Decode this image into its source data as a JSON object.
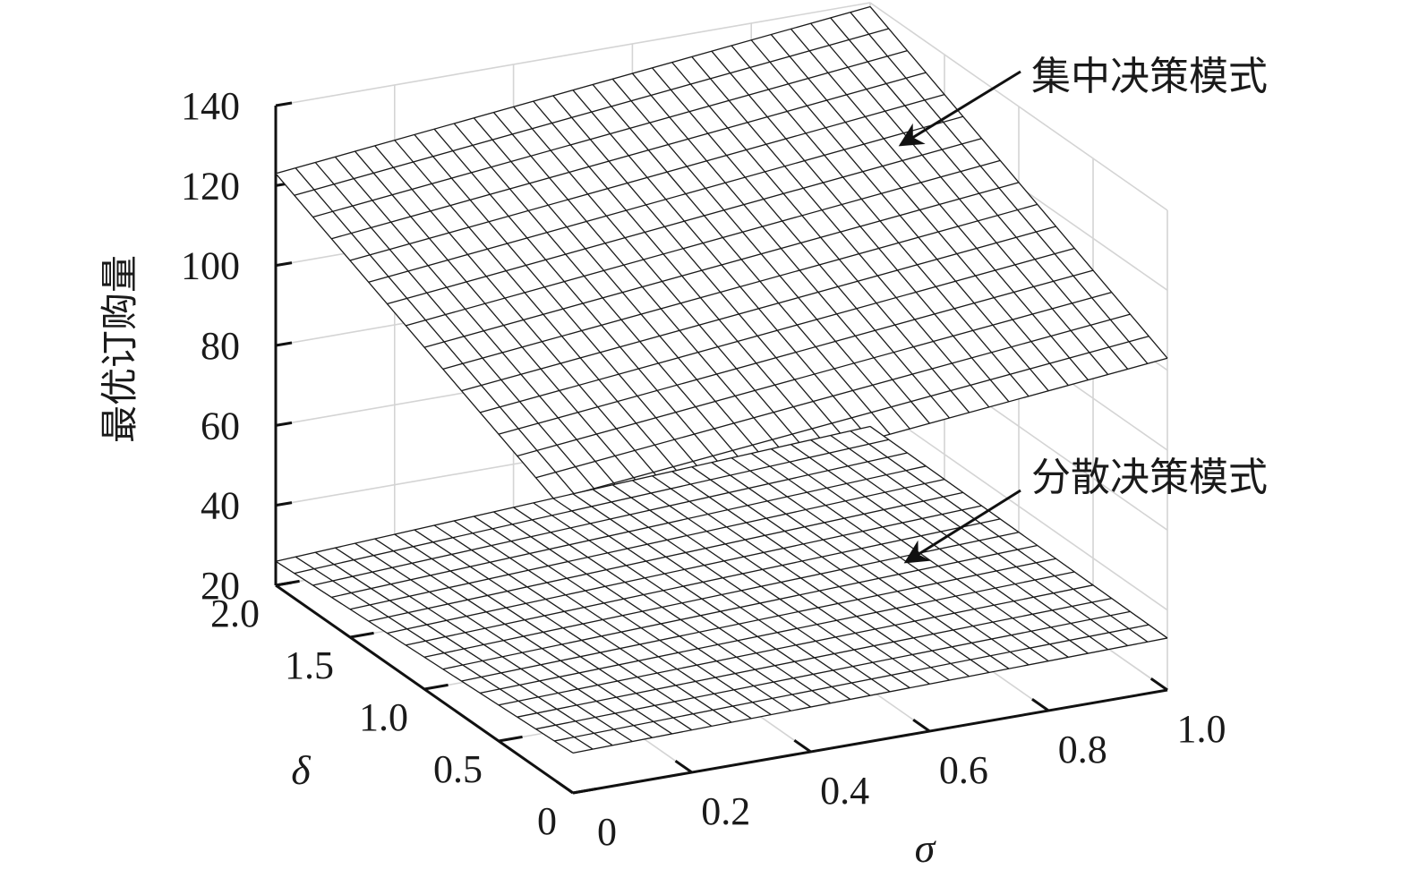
{
  "chart_data": {
    "type": "surface3d",
    "title": "",
    "xlabel": "σ",
    "ylabel": "δ",
    "zlabel": "最优订购量",
    "xlim": [
      0,
      1
    ],
    "ylim": [
      0,
      2
    ],
    "zlim": [
      20,
      140
    ],
    "x_ticks": [
      0,
      0.2,
      0.4,
      0.6,
      0.8,
      1.0
    ],
    "x_tick_labels": [
      "0",
      "0.2",
      "0.4",
      "0.6",
      "0.8",
      "1.0"
    ],
    "y_ticks": [
      0,
      0.5,
      1.0,
      1.5,
      2.0
    ],
    "y_tick_labels": [
      "0",
      "0.5",
      "1.0",
      "1.5",
      "2.0"
    ],
    "z_ticks": [
      20,
      40,
      60,
      80,
      100,
      120,
      140
    ],
    "z_tick_labels": [
      "20",
      "40",
      "60",
      "80",
      "100",
      "120",
      "140"
    ],
    "grid": true,
    "series": [
      {
        "name": "集中决策模式",
        "type": "surface",
        "z_corners": {
          "sigma0_delta0": 88,
          "sigma0_delta2": 123,
          "sigma1_delta0": 103,
          "sigma1_delta2": 139
        }
      },
      {
        "name": "分散决策模式",
        "type": "surface",
        "z_corners": {
          "sigma0_delta0": 30,
          "sigma0_delta2": 26,
          "sigma1_delta0": 33,
          "sigma1_delta2": 34
        }
      }
    ],
    "annotations": [
      {
        "text": "集中决策模式",
        "target_series": 0
      },
      {
        "text": "分散决策模式",
        "target_series": 1
      }
    ]
  }
}
